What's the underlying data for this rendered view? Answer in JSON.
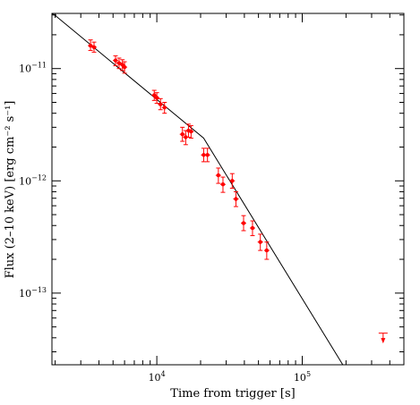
{
  "chart_data": {
    "type": "scatter",
    "xlabel": "Time from trigger [s]",
    "ylabel": "Flux (2–10 keV) [erg cm⁻² s⁻¹]",
    "xscale": "log",
    "yscale": "log",
    "xlim": [
      1900,
      500000
    ],
    "ylim": [
      2.3e-14,
      3.1e-11
    ],
    "x_tick_labels": [
      {
        "value": 10000,
        "base": "10",
        "exp": "4"
      },
      {
        "value": 100000,
        "base": "10",
        "exp": "5"
      }
    ],
    "y_tick_labels": [
      {
        "value": 1e-11,
        "base": "10",
        "exp": "−11"
      },
      {
        "value": 1e-12,
        "base": "10",
        "exp": "−12"
      },
      {
        "value": 1e-13,
        "base": "10",
        "exp": "−13"
      }
    ],
    "grid": false,
    "data_color": "#ff0000",
    "model_color": "#000000",
    "series": [
      {
        "type": "points_with_errors",
        "points": [
          {
            "x": 3500,
            "y": 1.6e-11,
            "ylo": 1.45e-11,
            "yhi": 1.8e-11
          },
          {
            "x": 3700,
            "y": 1.55e-11,
            "ylo": 1.4e-11,
            "yhi": 1.72e-11
          },
          {
            "x": 5200,
            "y": 1.18e-11,
            "ylo": 1.06e-11,
            "yhi": 1.3e-11
          },
          {
            "x": 5500,
            "y": 1.12e-11,
            "ylo": 1e-11,
            "yhi": 1.24e-11
          },
          {
            "x": 5800,
            "y": 1.08e-11,
            "ylo": 9.6e-12,
            "yhi": 1.2e-11
          },
          {
            "x": 6000,
            "y": 1.03e-11,
            "ylo": 9.1e-12,
            "yhi": 1.15e-11
          },
          {
            "x": 9600,
            "y": 5.8e-12,
            "ylo": 5.2e-12,
            "yhi": 6.4e-12
          },
          {
            "x": 10000,
            "y": 5.5e-12,
            "ylo": 4.9e-12,
            "yhi": 6.1e-12
          },
          {
            "x": 10600,
            "y": 4.8e-12,
            "ylo": 4.3e-12,
            "yhi": 5.4e-12
          },
          {
            "x": 11300,
            "y": 4.5e-12,
            "ylo": 4e-12,
            "yhi": 5e-12
          },
          {
            "x": 15000,
            "y": 2.6e-12,
            "ylo": 2.25e-12,
            "yhi": 3e-12
          },
          {
            "x": 15800,
            "y": 2.45e-12,
            "ylo": 2.1e-12,
            "yhi": 2.8e-12
          },
          {
            "x": 16500,
            "y": 2.8e-12,
            "ylo": 2.45e-12,
            "yhi": 3.2e-12
          },
          {
            "x": 17200,
            "y": 2.75e-12,
            "ylo": 2.4e-12,
            "yhi": 3.1e-12
          },
          {
            "x": 21000,
            "y": 1.7e-12,
            "ylo": 1.48e-12,
            "yhi": 1.95e-12
          },
          {
            "x": 22300,
            "y": 1.7e-12,
            "ylo": 1.48e-12,
            "yhi": 1.95e-12
          },
          {
            "x": 26500,
            "y": 1.12e-12,
            "ylo": 9.5e-13,
            "yhi": 1.3e-12
          },
          {
            "x": 28500,
            "y": 9.3e-13,
            "ylo": 7.9e-13,
            "yhi": 1.08e-12
          },
          {
            "x": 33000,
            "y": 1e-12,
            "ylo": 8.6e-13,
            "yhi": 1.16e-12
          },
          {
            "x": 35000,
            "y": 6.9e-13,
            "ylo": 5.9e-13,
            "yhi": 8e-13
          },
          {
            "x": 39500,
            "y": 4.2e-13,
            "ylo": 3.6e-13,
            "yhi": 4.9e-13
          },
          {
            "x": 45500,
            "y": 3.8e-13,
            "ylo": 3.25e-13,
            "yhi": 4.4e-13
          },
          {
            "x": 51500,
            "y": 2.85e-13,
            "ylo": 2.4e-13,
            "yhi": 3.35e-13
          },
          {
            "x": 57000,
            "y": 2.4e-13,
            "ylo": 2e-13,
            "yhi": 2.85e-13
          }
        ]
      },
      {
        "type": "upper_limit",
        "points": [
          {
            "x": 360000,
            "y": 4.4e-14,
            "arrow_to": 3.7e-14
          }
        ]
      },
      {
        "type": "model_line",
        "points": [
          {
            "x": 1900,
            "y": 3.1e-11
          },
          {
            "x": 2000,
            "y": 2.97e-11
          },
          {
            "x": 21000,
            "y": 2.4e-12
          },
          {
            "x": 190000,
            "y": 2.3e-14
          }
        ]
      }
    ]
  }
}
